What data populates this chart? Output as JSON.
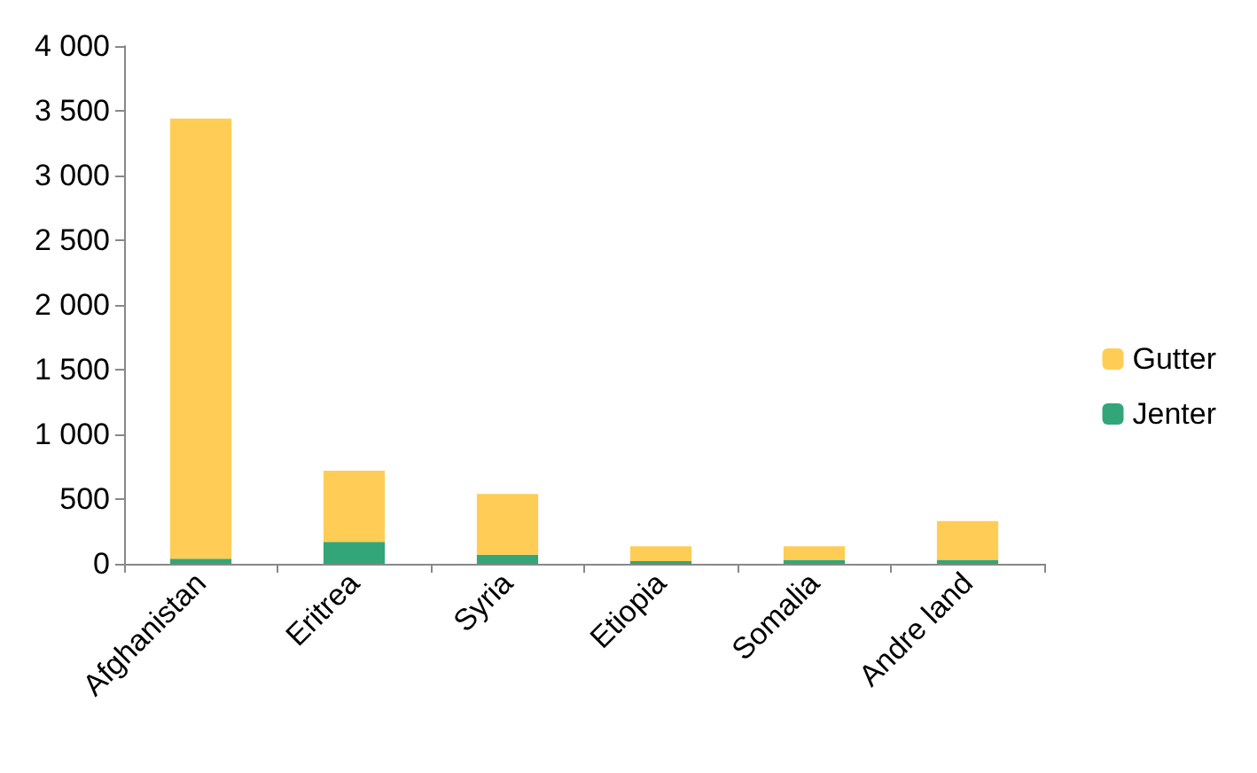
{
  "chart_data": {
    "type": "bar",
    "stacked": true,
    "categories": [
      "Afghanistan",
      "Eritrea",
      "Syria",
      "Etiopia",
      "Somalia",
      "Andre land"
    ],
    "series": [
      {
        "name": "Jenter",
        "color": "#33a679",
        "values": [
          40,
          170,
          70,
          20,
          30,
          30
        ]
      },
      {
        "name": "Gutter",
        "color": "#ffcd55",
        "values": [
          3400,
          550,
          470,
          115,
          105,
          300
        ]
      }
    ],
    "ylim": [
      0,
      4000
    ],
    "yticks": [
      0,
      500,
      {
        "value": 1000,
        "label": "1 000"
      },
      {
        "value": 1500,
        "label": "1 500"
      },
      {
        "value": 2000,
        "label": "2 000"
      },
      {
        "value": 2500,
        "label": "2 500"
      },
      {
        "value": 3000,
        "label": "3 000"
      },
      {
        "value": 3500,
        "label": "3 500"
      },
      {
        "value": 4000,
        "label": "4 000"
      }
    ],
    "grid": false,
    "legend": "right"
  }
}
